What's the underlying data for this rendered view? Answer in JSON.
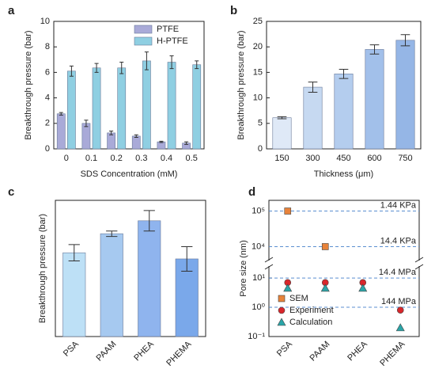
{
  "chart_data": [
    {
      "type": "bar",
      "panel": "a",
      "x_label": "SDS Concentration (mM)",
      "y_label": "Breakthrough pressure (bar)",
      "categories": [
        "0",
        "0.1",
        "0.2",
        "0.3",
        "0.4",
        "0.5"
      ],
      "series": [
        {
          "name": "PTFE",
          "color": "#a9aad8",
          "values": [
            2.75,
            2.0,
            1.25,
            1.0,
            0.55,
            0.45
          ],
          "errors": [
            0.1,
            0.25,
            0.15,
            0.1,
            0.05,
            0.1
          ]
        },
        {
          "name": "H-PTFE",
          "color": "#8fcfe2",
          "values": [
            6.1,
            6.35,
            6.35,
            6.9,
            6.8,
            6.6
          ],
          "errors": [
            0.4,
            0.35,
            0.45,
            0.7,
            0.5,
            0.3
          ]
        }
      ],
      "ylim": [
        0,
        10
      ],
      "yticks": [
        0,
        2,
        4,
        6,
        8,
        10
      ],
      "legend": "upper right"
    },
    {
      "type": "bar",
      "panel": "b",
      "x_label": "Thickness (μm)",
      "y_label": "Breakthrough pressure (bar)",
      "categories": [
        "150",
        "300",
        "450",
        "600",
        "750"
      ],
      "series": [
        {
          "colors": [
            "#dfe9f7",
            "#c6d9f1",
            "#b4cdee",
            "#a2c0ea",
            "#95b6e6"
          ],
          "values": [
            6.1,
            12.1,
            14.7,
            19.5,
            21.3
          ],
          "errors": [
            0.2,
            1.0,
            0.9,
            0.9,
            1.1
          ]
        }
      ],
      "ylim": [
        0,
        25
      ],
      "yticks": [
        0,
        5,
        10,
        15,
        20,
        25
      ]
    },
    {
      "type": "bar",
      "panel": "c",
      "y_label": "Breakthrough pressure (bar)",
      "categories": [
        "PSA",
        "PAAM",
        "PHEA",
        "PHEMA"
      ],
      "series": [
        {
          "colors": [
            "#bde0f6",
            "#a6c9f0",
            "#8fb4ee",
            "#7aa8ea"
          ],
          "values": [
            6.15,
            7.55,
            8.5,
            5.7
          ],
          "errors": [
            0.6,
            0.2,
            0.75,
            0.9
          ]
        }
      ],
      "ylim": [
        0,
        10
      ]
    },
    {
      "type": "scatter",
      "panel": "d",
      "y_label": "Pore size (nm)",
      "log_y": true,
      "categories": [
        "PSA",
        "PAAM",
        "PHEA",
        "PHEMA"
      ],
      "series": [
        {
          "name": "SEM",
          "marker": "square",
          "color": "#e8833a",
          "values": [
            100000,
            10000,
            null,
            null
          ]
        },
        {
          "name": "Experiment",
          "marker": "circle",
          "color": "#d9262b",
          "values": [
            7,
            7,
            7,
            0.8
          ]
        },
        {
          "name": "Calculation",
          "marker": "triangle",
          "color": "#2aa5a8",
          "values": [
            4.5,
            4.5,
            4.5,
            0.2
          ]
        }
      ],
      "reference_lines": [
        {
          "value": 100000,
          "label": "1.44 KPa"
        },
        {
          "value": 10000,
          "label": "14.4 KPa"
        },
        {
          "value": 10,
          "label": "14.4 MPa"
        },
        {
          "value": 1,
          "label": "144 MPa"
        }
      ],
      "ylim": [
        0.1,
        200000
      ],
      "ybreak": [
        20,
        5000
      ],
      "yticks": [
        {
          "value": 0.1,
          "label": "10⁻¹"
        },
        {
          "value": 1,
          "label": "10⁰"
        },
        {
          "value": 10,
          "label": "10¹"
        },
        {
          "value": 10000,
          "label": "10⁴"
        },
        {
          "value": 100000,
          "label": "10⁵"
        }
      ],
      "legend": "lower left"
    }
  ]
}
